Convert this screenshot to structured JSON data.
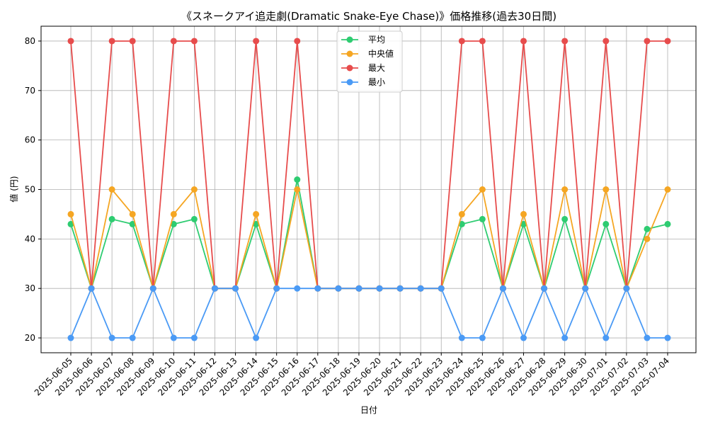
{
  "chart_data": {
    "type": "line",
    "title": "《スネークアイ追走劇(Dramatic Snake-Eye Chase)》価格推移(過去30日間)",
    "xlabel": "日付",
    "ylabel": "値 (円)",
    "ylim": [
      17,
      83
    ],
    "yticks": [
      20,
      30,
      40,
      50,
      60,
      70,
      80
    ],
    "grid": true,
    "legend_position": "top-center",
    "categories": [
      "2025-06-05",
      "2025-06-06",
      "2025-06-07",
      "2025-06-08",
      "2025-06-09",
      "2025-06-10",
      "2025-06-11",
      "2025-06-12",
      "2025-06-13",
      "2025-06-14",
      "2025-06-15",
      "2025-06-16",
      "2025-06-17",
      "2025-06-18",
      "2025-06-19",
      "2025-06-20",
      "2025-06-21",
      "2025-06-22",
      "2025-06-23",
      "2025-06-24",
      "2025-06-25",
      "2025-06-26",
      "2025-06-27",
      "2025-06-28",
      "2025-06-29",
      "2025-06-30",
      "2025-07-01",
      "2025-07-02",
      "2025-07-03",
      "2025-07-04"
    ],
    "series": [
      {
        "name": "平均",
        "color": "#2ecc71",
        "values": [
          43,
          30,
          44,
          43,
          30,
          43,
          44,
          30,
          30,
          43,
          30,
          52,
          30,
          30,
          30,
          30,
          30,
          30,
          30,
          43,
          44,
          30,
          43,
          30,
          44,
          30,
          43,
          30,
          42,
          43
        ]
      },
      {
        "name": "中央値",
        "color": "#f5a623",
        "values": [
          45,
          30,
          50,
          45,
          30,
          45,
          50,
          30,
          30,
          45,
          30,
          50,
          30,
          30,
          30,
          30,
          30,
          30,
          30,
          45,
          50,
          30,
          45,
          30,
          50,
          30,
          50,
          30,
          40,
          50
        ]
      },
      {
        "name": "最大",
        "color": "#e74c4c",
        "values": [
          80,
          30,
          80,
          80,
          30,
          80,
          80,
          30,
          30,
          80,
          30,
          80,
          30,
          30,
          30,
          30,
          30,
          30,
          30,
          80,
          80,
          30,
          80,
          30,
          80,
          30,
          80,
          30,
          80,
          80
        ]
      },
      {
        "name": "最小",
        "color": "#4a9af5",
        "values": [
          20,
          30,
          20,
          20,
          30,
          20,
          20,
          30,
          30,
          20,
          30,
          30,
          30,
          30,
          30,
          30,
          30,
          30,
          30,
          20,
          20,
          30,
          20,
          30,
          20,
          30,
          20,
          30,
          20,
          20
        ]
      }
    ]
  }
}
